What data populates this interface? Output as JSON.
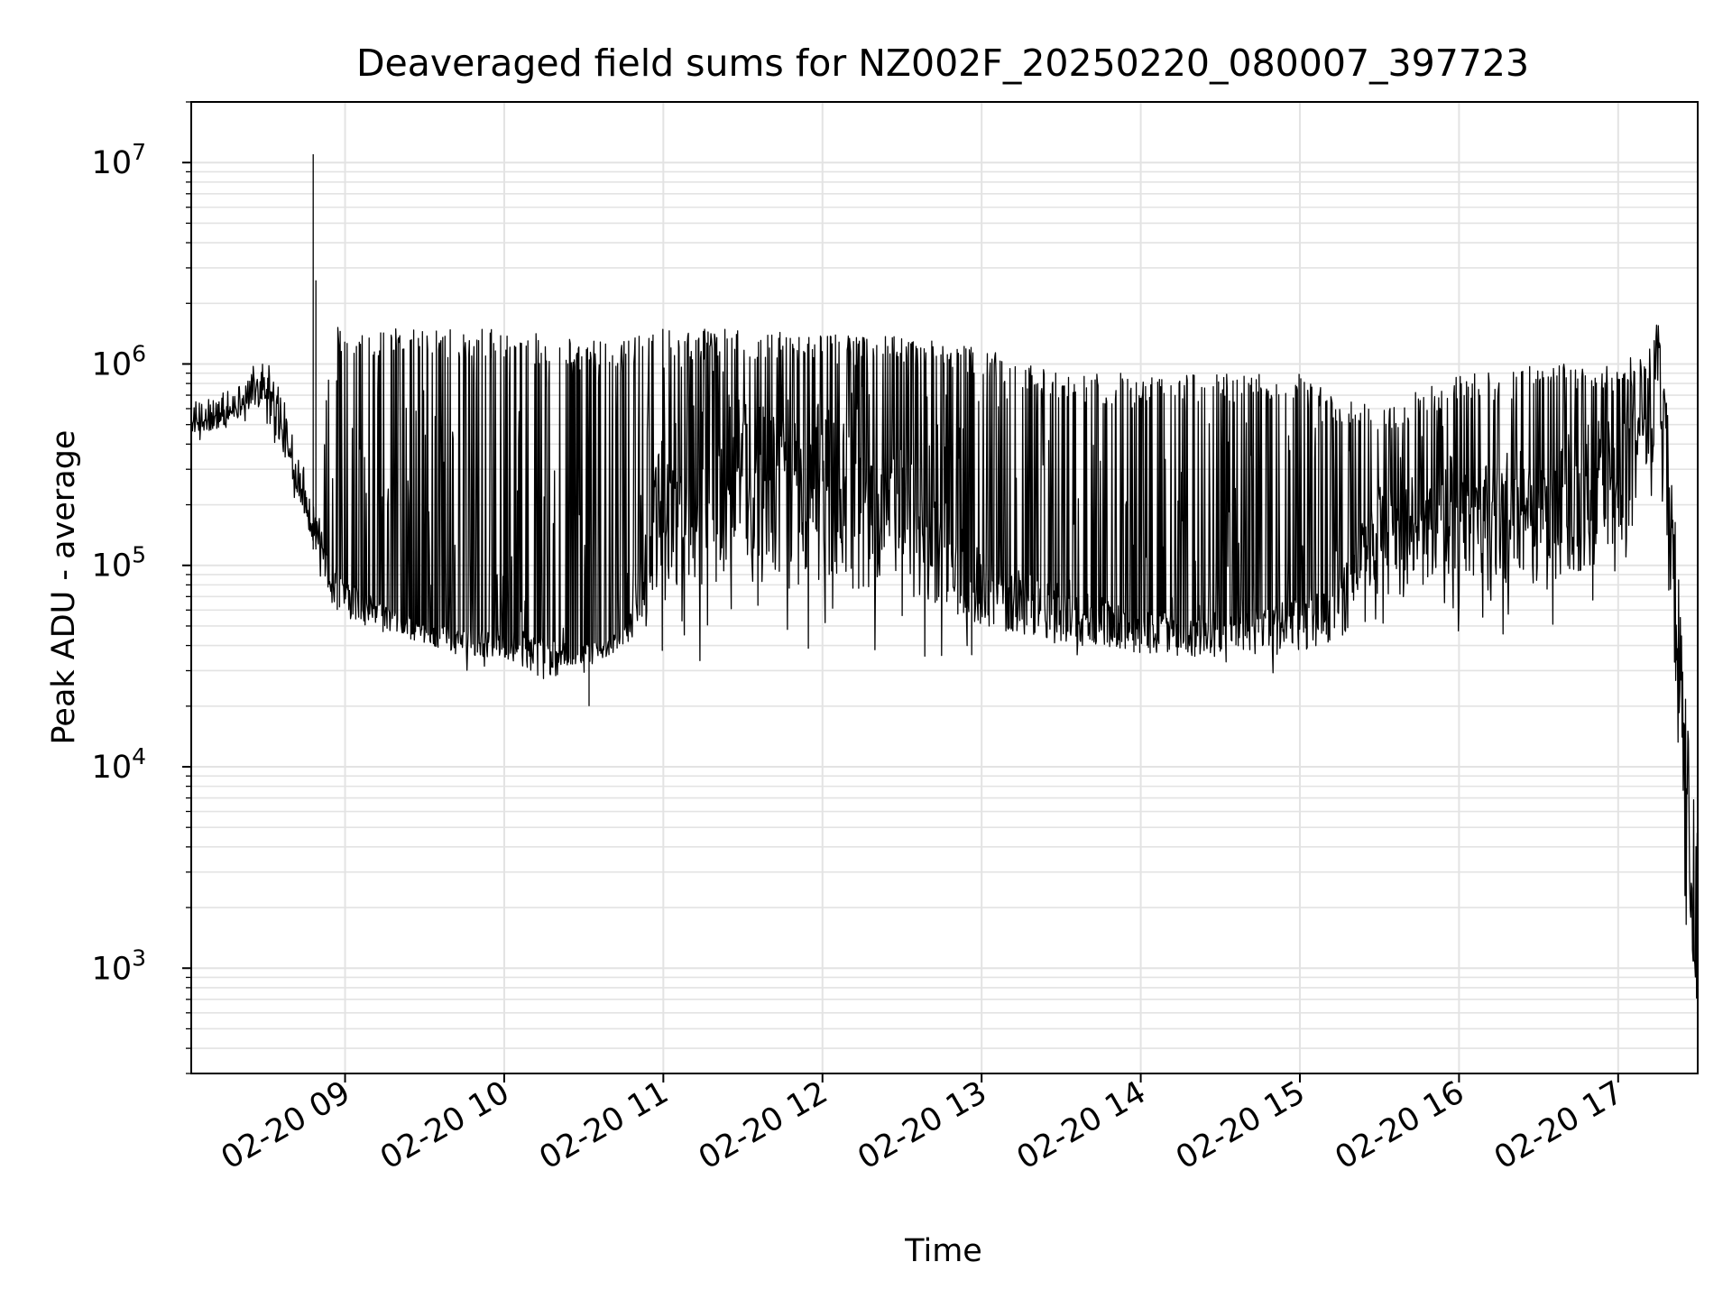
{
  "chart_data": {
    "type": "line",
    "title": "Deaveraged field sums for NZ002F_20250220_080007_397723",
    "xlabel": "Time",
    "ylabel": "Peak ADU - average",
    "yscale": "log",
    "grid": true,
    "legend": "none",
    "line_color": "#000000",
    "xlim": [
      "2025-02-20 08:02",
      "2025-02-20 17:30"
    ],
    "ylim": [
      300,
      20000000
    ],
    "x_ticks": [
      {
        "value": "2025-02-20 09:00",
        "label": "02-20 09"
      },
      {
        "value": "2025-02-20 10:00",
        "label": "02-20 10"
      },
      {
        "value": "2025-02-20 11:00",
        "label": "02-20 11"
      },
      {
        "value": "2025-02-20 12:00",
        "label": "02-20 12"
      },
      {
        "value": "2025-02-20 13:00",
        "label": "02-20 13"
      },
      {
        "value": "2025-02-20 14:00",
        "label": "02-20 14"
      },
      {
        "value": "2025-02-20 15:00",
        "label": "02-20 15"
      },
      {
        "value": "2025-02-20 16:00",
        "label": "02-20 16"
      },
      {
        "value": "2025-02-20 17:00",
        "label": "02-20 17"
      }
    ],
    "y_ticks": [
      {
        "value": 1000,
        "base": "10",
        "exp": "3"
      },
      {
        "value": 10000,
        "base": "10",
        "exp": "4"
      },
      {
        "value": 100000,
        "base": "10",
        "exp": "5"
      },
      {
        "value": 1000000,
        "base": "10",
        "exp": "6"
      },
      {
        "value": 10000000,
        "base": "10",
        "exp": "7"
      }
    ],
    "x": [
      "2025-02-20 08:02",
      "2025-02-20 08:10",
      "2025-02-20 08:20",
      "2025-02-20 08:30",
      "2025-02-20 08:38",
      "2025-02-20 08:45",
      "2025-02-20 08:50",
      "2025-02-20 08:55",
      "2025-02-20 09:00",
      "2025-02-20 09:15",
      "2025-02-20 09:30",
      "2025-02-20 09:45",
      "2025-02-20 10:00",
      "2025-02-20 10:15",
      "2025-02-20 10:30",
      "2025-02-20 10:45",
      "2025-02-20 11:00",
      "2025-02-20 11:30",
      "2025-02-20 12:00",
      "2025-02-20 12:30",
      "2025-02-20 13:00",
      "2025-02-20 13:30",
      "2025-02-20 14:00",
      "2025-02-20 14:30",
      "2025-02-20 15:00",
      "2025-02-20 15:15",
      "2025-02-20 15:30",
      "2025-02-20 16:00",
      "2025-02-20 16:30",
      "2025-02-20 17:00",
      "2025-02-20 17:10",
      "2025-02-20 17:15",
      "2025-02-20 17:20",
      "2025-02-20 17:25",
      "2025-02-20 17:30"
    ],
    "series": [
      {
        "values": [
          550000,
          550000,
          700000,
          1100000,
          450000,
          250000,
          160000,
          110000,
          85000,
          65000,
          50000,
          50000,
          50000,
          45000,
          40000,
          45000,
          500000,
          700000,
          650000,
          400000,
          120000,
          80000,
          60000,
          55000,
          70000,
          90000,
          250000,
          300000,
          350000,
          450000,
          700000,
          1600000,
          300000,
          20000,
          600
        ]
      },
      {
        "values": [
          650000,
          700000,
          800000,
          1200000,
          600000,
          350000,
          200000,
          1900000,
          1400000,
          1500000,
          1500000,
          1500000,
          1500000,
          1400000,
          1300000,
          1300000,
          1500000,
          1500000,
          1400000,
          1400000,
          1200000,
          900000,
          900000,
          900000,
          900000,
          700000,
          600000,
          900000,
          1000000,
          1000000,
          1200000,
          1700000,
          500000,
          25000,
          5000
        ]
      }
    ],
    "envelope_min": [
      420000,
      420000,
      500000,
      500000,
      280000,
      150000,
      90000,
      50000,
      45000,
      40000,
      38000,
      30000,
      30000,
      22000,
      28000,
      35000,
      35000,
      32000,
      32000,
      35000,
      35000,
      30000,
      30000,
      28000,
      28000,
      30000,
      50000,
      45000,
      40000,
      60000,
      110000,
      250000,
      20000,
      1800,
      500
    ],
    "spikes": [
      {
        "x": "2025-02-20 08:48",
        "y": 11000000
      },
      {
        "x": "2025-02-20 08:49",
        "y": 2600000
      },
      {
        "x": "2025-02-20 10:32",
        "y": 20000
      }
    ]
  }
}
